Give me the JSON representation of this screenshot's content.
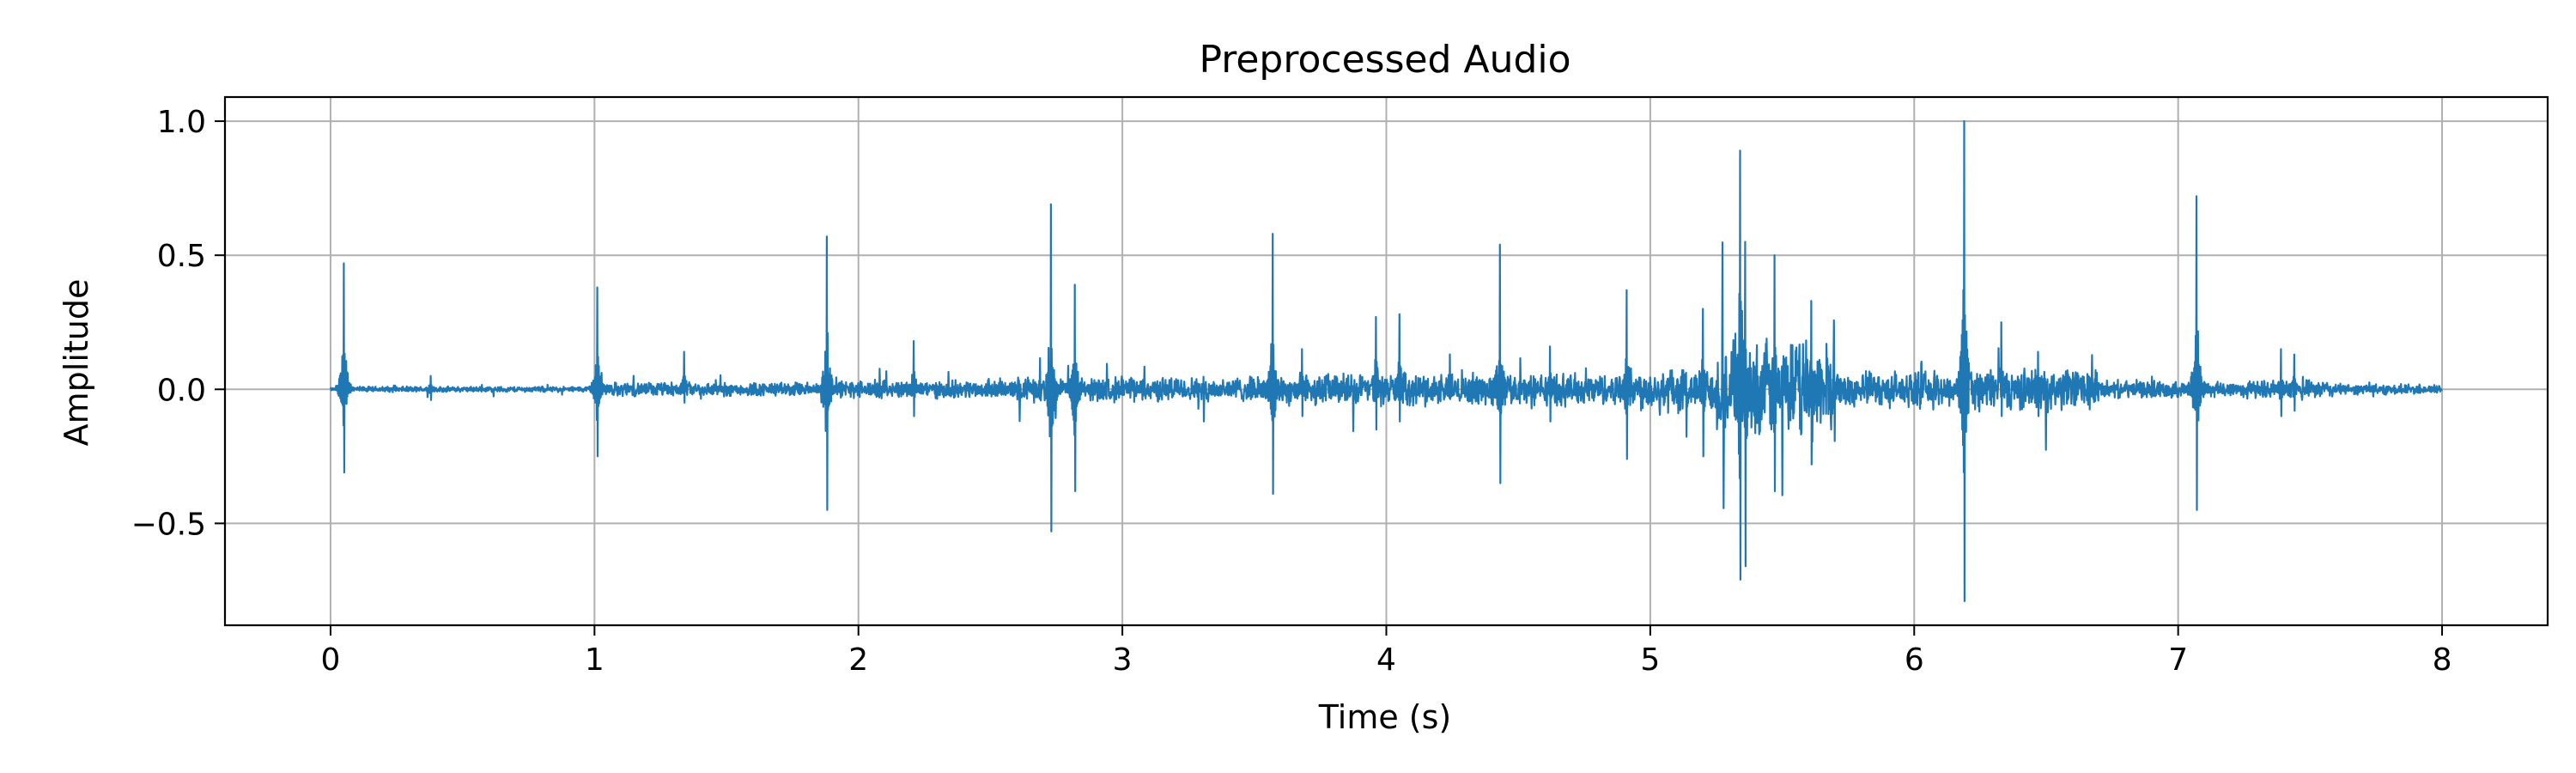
{
  "chart_data": {
    "type": "line",
    "title": "Preprocessed Audio",
    "xlabel": "Time (s)",
    "ylabel": "Amplitude",
    "xlim": [
      -0.4,
      8.4
    ],
    "ylim": [
      -0.88,
      1.09
    ],
    "x_ticks": [
      0,
      1,
      2,
      3,
      4,
      5,
      6,
      7,
      8
    ],
    "x_tick_labels": [
      "0",
      "1",
      "2",
      "3",
      "4",
      "5",
      "6",
      "7",
      "8"
    ],
    "y_ticks": [
      -0.5,
      0.0,
      0.5,
      1.0
    ],
    "y_tick_labels": [
      "−0.5",
      "0.0",
      "0.5",
      "1.0"
    ],
    "grid": true,
    "duration": 8.0,
    "line_color": "#1f77b4",
    "series": [
      {
        "events": [
          {
            "t": 0.05,
            "pos": 0.47,
            "neg": -0.31
          },
          {
            "t": 0.38,
            "pos": 0.05,
            "neg": -0.04
          },
          {
            "t": 1.01,
            "pos": 0.38,
            "neg": -0.25
          },
          {
            "t": 1.34,
            "pos": 0.14,
            "neg": -0.05
          },
          {
            "t": 1.88,
            "pos": 0.57,
            "neg": -0.45
          },
          {
            "t": 2.21,
            "pos": 0.18,
            "neg": -0.1
          },
          {
            "t": 2.73,
            "pos": 0.69,
            "neg": -0.53
          },
          {
            "t": 2.82,
            "pos": 0.39,
            "neg": -0.38
          },
          {
            "t": 3.57,
            "pos": 0.58,
            "neg": -0.39
          },
          {
            "t": 3.68,
            "pos": 0.15,
            "neg": -0.1
          },
          {
            "t": 3.96,
            "pos": 0.27,
            "neg": -0.15
          },
          {
            "t": 4.05,
            "pos": 0.28,
            "neg": -0.12
          },
          {
            "t": 4.43,
            "pos": 0.54,
            "neg": -0.35
          },
          {
            "t": 4.62,
            "pos": 0.16,
            "neg": -0.12
          },
          {
            "t": 4.91,
            "pos": 0.37,
            "neg": -0.26
          },
          {
            "t": 5.2,
            "pos": 0.3,
            "neg": -0.25
          },
          {
            "t": 5.34,
            "pos": 0.89,
            "neg": -0.71
          },
          {
            "t": 5.36,
            "pos": 0.55,
            "neg": -0.66
          },
          {
            "t": 5.47,
            "pos": 0.5,
            "neg": -0.38
          },
          {
            "t": 5.61,
            "pos": 0.33,
            "neg": -0.28
          },
          {
            "t": 6.19,
            "pos": 1.0,
            "neg": -0.79
          },
          {
            "t": 6.33,
            "pos": 0.25,
            "neg": -0.1
          },
          {
            "t": 6.47,
            "pos": 0.14,
            "neg": -0.1
          },
          {
            "t": 7.07,
            "pos": 0.72,
            "neg": -0.45
          },
          {
            "t": 7.39,
            "pos": 0.15,
            "neg": -0.1
          },
          {
            "t": 7.44,
            "pos": 0.13,
            "neg": -0.08
          }
        ],
        "noise_regions": [
          {
            "start": 0.0,
            "end": 0.05,
            "amp": 0.004
          },
          {
            "start": 0.05,
            "end": 1.0,
            "amp": 0.008
          },
          {
            "start": 1.0,
            "end": 1.9,
            "amp": 0.02
          },
          {
            "start": 1.9,
            "end": 2.6,
            "amp": 0.025
          },
          {
            "start": 2.6,
            "end": 3.6,
            "amp": 0.035
          },
          {
            "start": 3.6,
            "end": 4.9,
            "amp": 0.045
          },
          {
            "start": 4.9,
            "end": 5.25,
            "amp": 0.06
          },
          {
            "start": 5.25,
            "end": 5.7,
            "amp": 0.14
          },
          {
            "start": 5.7,
            "end": 6.2,
            "amp": 0.05
          },
          {
            "start": 6.2,
            "end": 6.7,
            "amp": 0.06
          },
          {
            "start": 6.7,
            "end": 7.1,
            "amp": 0.025
          },
          {
            "start": 7.1,
            "end": 7.6,
            "amp": 0.025
          },
          {
            "start": 7.6,
            "end": 8.0,
            "amp": 0.015
          }
        ]
      }
    ]
  }
}
